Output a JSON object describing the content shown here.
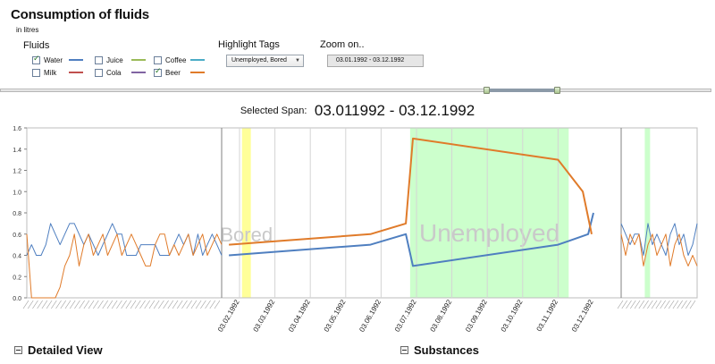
{
  "header": {
    "title": "Consumption of fluids",
    "subtitle": "in litres"
  },
  "fluids": {
    "label": "Fluids",
    "items": [
      {
        "name": "Water",
        "color": "#4f7fc0",
        "checked": true
      },
      {
        "name": "Juice",
        "color": "#9bbb59",
        "checked": false
      },
      {
        "name": "Coffee",
        "color": "#4bacc6",
        "checked": false
      },
      {
        "name": "Milk",
        "color": "#c0504d",
        "checked": false
      },
      {
        "name": "Cola",
        "color": "#8064a2",
        "checked": false
      },
      {
        "name": "Beer",
        "color": "#e07b2a",
        "checked": true
      }
    ]
  },
  "highlight_tags": {
    "label": "Highlight Tags",
    "value": "Unemployed, Bored"
  },
  "zoom": {
    "label": "Zoom on..",
    "value": "03.01.1992 - 03.12.1992"
  },
  "selected_span": {
    "label": "Selected Span:",
    "value": "03.011992 - 03.12.1992"
  },
  "sections": {
    "detailed_view": "Detailed View",
    "substances": "Substances"
  },
  "chart_data": {
    "type": "line",
    "ylim": [
      0,
      1.6
    ],
    "yticks": [
      "0.0",
      "0.2",
      "0.4",
      "0.6",
      "0.8",
      "1.0",
      "1.2",
      "1.4",
      "1.6"
    ],
    "xticks": [
      "03.02.1992",
      "03.03.1992",
      "03.04.1992",
      "03.05.1992",
      "03.06.1992",
      "03.07.1992",
      "03.08.1992",
      "03.09.1992",
      "03.10.1992",
      "03.11.1992",
      "03.12.1992"
    ],
    "highlights": [
      {
        "label": "Bored",
        "from": 0.07,
        "to": 0.32,
        "color": "#ffff99"
      },
      {
        "label": "Unemployed",
        "from": 4.82,
        "to": 9.3,
        "color": "#ccffcc"
      },
      {
        "label": "",
        "from": 11.45,
        "to": 11.6,
        "color": "#ccffcc"
      }
    ],
    "series": [
      {
        "name": "Water",
        "color": "#4f7fc0",
        "main_x": [
          -0.3,
          3.7,
          4.7,
          4.9,
          9.0,
          9.85,
          10.0
        ],
        "main_y": [
          0.4,
          0.5,
          0.6,
          0.3,
          0.5,
          0.6,
          0.8
        ],
        "left_y": [
          0.4,
          0.5,
          0.4,
          0.4,
          0.5,
          0.7,
          0.6,
          0.5,
          0.6,
          0.7,
          0.7,
          0.6,
          0.5,
          0.6,
          0.5,
          0.4,
          0.5,
          0.6,
          0.7,
          0.6,
          0.6,
          0.4,
          0.4,
          0.4,
          0.5,
          0.5,
          0.5,
          0.5,
          0.4,
          0.4,
          0.4,
          0.5,
          0.6,
          0.5,
          0.6,
          0.4,
          0.6,
          0.4,
          0.5,
          0.6,
          0.5,
          0.4
        ],
        "right_y": [
          0.7,
          0.6,
          0.5,
          0.6,
          0.6,
          0.4,
          0.7,
          0.5,
          0.6,
          0.5,
          0.4,
          0.6,
          0.7,
          0.5,
          0.6,
          0.4,
          0.5,
          0.7
        ]
      },
      {
        "name": "Beer",
        "color": "#e07b2a",
        "main_x": [
          -0.3,
          3.7,
          4.7,
          4.9,
          9.0,
          9.7,
          9.95
        ],
        "main_y": [
          0.5,
          0.6,
          0.7,
          1.5,
          1.3,
          1.0,
          0.6
        ],
        "left_y": [
          0.6,
          0.0,
          0.0,
          0.0,
          0.0,
          0.0,
          0.0,
          0.1,
          0.3,
          0.4,
          0.6,
          0.3,
          0.5,
          0.6,
          0.4,
          0.5,
          0.6,
          0.4,
          0.5,
          0.6,
          0.4,
          0.5,
          0.6,
          0.5,
          0.4,
          0.3,
          0.3,
          0.5,
          0.6,
          0.6,
          0.4,
          0.5,
          0.4,
          0.5,
          0.6,
          0.4,
          0.5,
          0.6,
          0.4,
          0.5,
          0.6,
          0.5
        ],
        "right_y": [
          0.6,
          0.4,
          0.6,
          0.5,
          0.6,
          0.3,
          0.5,
          0.6,
          0.4,
          0.5,
          0.6,
          0.3,
          0.5,
          0.6,
          0.4,
          0.3,
          0.4,
          0.3
        ]
      }
    ]
  }
}
